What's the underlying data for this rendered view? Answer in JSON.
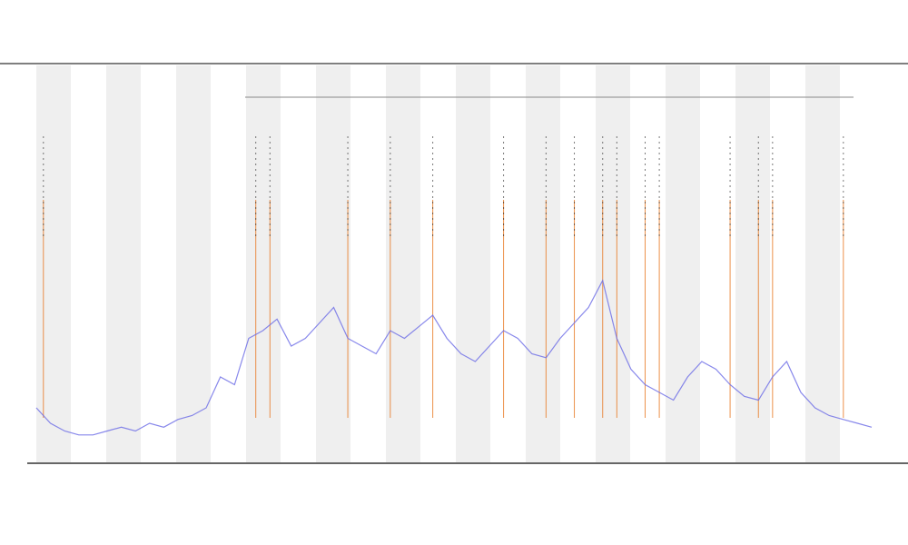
{
  "chart_data": {
    "type": "line",
    "x": [
      0,
      1,
      2,
      3,
      4,
      5,
      6,
      7,
      8,
      9,
      10,
      11,
      12,
      13,
      14,
      15,
      16,
      17,
      18,
      19,
      20,
      21,
      22,
      23,
      24,
      25,
      26,
      27,
      28,
      29,
      30,
      31,
      32,
      33,
      34,
      35,
      36,
      37,
      38,
      39,
      40,
      41,
      42,
      43,
      44,
      45,
      46,
      47,
      48,
      49,
      50,
      51,
      52,
      53,
      54,
      55,
      56,
      57,
      58,
      59
    ],
    "xlim": [
      0,
      59
    ],
    "ylim": [
      0,
      100
    ],
    "series": [
      {
        "color": "#6a6ae6",
        "values": [
          12,
          8,
          6,
          5,
          5,
          6,
          7,
          6,
          8,
          7,
          9,
          10,
          12,
          20,
          18,
          30,
          32,
          35,
          28,
          30,
          34,
          38,
          30,
          28,
          26,
          32,
          30,
          33,
          36,
          30,
          26,
          24,
          28,
          32,
          30,
          26,
          25,
          30,
          34,
          38,
          45,
          30,
          22,
          18,
          16,
          14,
          20,
          24,
          22,
          18,
          15,
          14,
          20,
          24,
          16,
          12,
          10,
          9,
          8,
          7
        ]
      }
    ],
    "events": {
      "color": "#e8761e",
      "x": [
        0.5,
        15.5,
        16.5,
        22,
        25,
        28,
        33,
        36,
        38,
        40,
        41,
        43,
        44,
        49,
        51,
        52,
        57
      ]
    }
  }
}
